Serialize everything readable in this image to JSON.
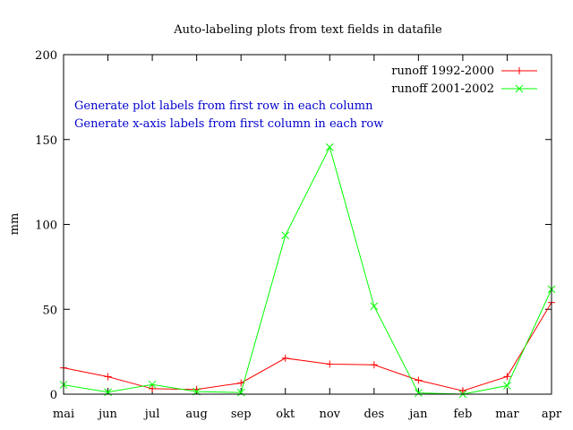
{
  "chart_data": {
    "type": "line",
    "title": "Auto-labeling plots from text fields in datafile",
    "xlabel": "",
    "ylabel": "mm",
    "categories": [
      "mai",
      "jun",
      "jul",
      "aug",
      "sep",
      "okt",
      "nov",
      "des",
      "jan",
      "feb",
      "mar",
      "apr"
    ],
    "ylim": [
      0,
      200
    ],
    "yticks": [
      0,
      50,
      100,
      150,
      200
    ],
    "grid": false,
    "legend_position": "top-right",
    "series": [
      {
        "name": "runoff 1992-2000",
        "color": "#ff0000",
        "marker": "plus",
        "values": [
          15.5,
          10.3,
          3.2,
          2.8,
          6.6,
          21.2,
          17.7,
          17.3,
          8.2,
          2.0,
          10.4,
          54.0
        ]
      },
      {
        "name": "runoff 2001-2002",
        "color": "#00ff00",
        "marker": "cross",
        "values": [
          5.5,
          1.2,
          5.7,
          1.5,
          1.0,
          93.5,
          145.5,
          51.8,
          0.7,
          0.0,
          5.0,
          61.8
        ]
      }
    ],
    "annotations": [
      "Generate plot labels from first row in each column",
      "Generate x-axis labels from first column in each row"
    ]
  }
}
